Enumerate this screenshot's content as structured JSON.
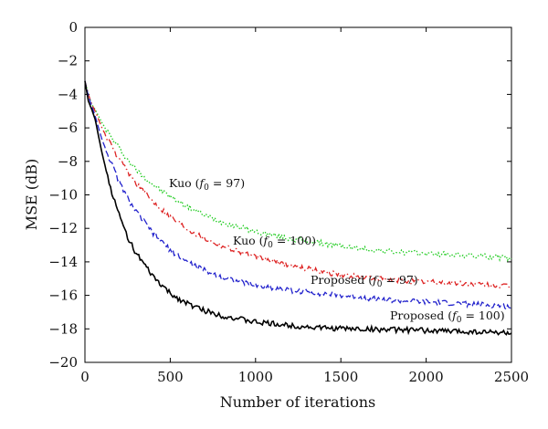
{
  "chart_data": {
    "type": "line",
    "title": "",
    "xlabel": "Number of iterations",
    "ylabel": "MSE (dB)",
    "xlim": [
      0,
      2500
    ],
    "ylim": [
      -20,
      0
    ],
    "x_ticks": [
      "0",
      "500",
      "1000",
      "1500",
      "2000",
      "2500"
    ],
    "y_ticks": [
      "0",
      "−2",
      "−4",
      "−6",
      "−8",
      "−10",
      "−12",
      "−14",
      "−16",
      "−18",
      "−20"
    ],
    "grid": false,
    "x": [
      0,
      20,
      40,
      60,
      80,
      100,
      150,
      200,
      250,
      300,
      400,
      500,
      600,
      700,
      800,
      1000,
      1200,
      1400,
      1600,
      1800,
      2000,
      2200,
      2400,
      2500
    ],
    "series": [
      {
        "name": "Kuo (f0 = 97)",
        "color": "#22cc22",
        "style": "dotted",
        "values": [
          -3.2,
          -4.0,
          -4.6,
          -4.9,
          -5.3,
          -5.7,
          -6.5,
          -7.2,
          -7.9,
          -8.5,
          -9.4,
          -10.1,
          -10.7,
          -11.2,
          -11.6,
          -12.2,
          -12.6,
          -12.9,
          -13.2,
          -13.4,
          -13.5,
          -13.6,
          -13.7,
          -13.8
        ]
      },
      {
        "name": "Kuo (f0 = 100)",
        "color": "#dd2222",
        "style": "dashdot",
        "values": [
          -3.2,
          -4.0,
          -4.6,
          -5.0,
          -5.5,
          -6.0,
          -7.0,
          -7.9,
          -8.6,
          -9.3,
          -10.4,
          -11.3,
          -12.0,
          -12.6,
          -13.0,
          -13.7,
          -14.2,
          -14.6,
          -14.9,
          -15.1,
          -15.2,
          -15.3,
          -15.4,
          -15.5
        ]
      },
      {
        "name": "Proposed (f0 = 97)",
        "color": "#2222cc",
        "style": "dashed",
        "values": [
          -3.2,
          -4.1,
          -4.7,
          -5.3,
          -6.0,
          -6.7,
          -8.0,
          -9.2,
          -10.2,
          -11.0,
          -12.3,
          -13.3,
          -14.0,
          -14.5,
          -14.9,
          -15.4,
          -15.7,
          -15.9,
          -16.1,
          -16.3,
          -16.4,
          -16.5,
          -16.6,
          -16.7
        ]
      },
      {
        "name": "Proposed (f0 = 100)",
        "color": "#000000",
        "style": "solid",
        "values": [
          -3.2,
          -4.4,
          -4.9,
          -5.5,
          -6.5,
          -7.5,
          -9.6,
          -11.2,
          -12.5,
          -13.5,
          -14.9,
          -15.9,
          -16.5,
          -16.9,
          -17.2,
          -17.6,
          -17.8,
          -17.95,
          -18.0,
          -18.05,
          -18.1,
          -18.15,
          -18.2,
          -18.25
        ]
      }
    ],
    "annotations": [
      {
        "base": "Kuo (",
        "var": "f",
        "sub": "0",
        "rest": " = 97)"
      },
      {
        "base": "Kuo (",
        "var": "f",
        "sub": "0",
        "rest": " = 100)"
      },
      {
        "base": "Proposed (",
        "var": "f",
        "sub": "0",
        "rest": " = 97)"
      },
      {
        "base": "Proposed (",
        "var": "f",
        "sub": "0",
        "rest": " = 100)"
      }
    ]
  }
}
